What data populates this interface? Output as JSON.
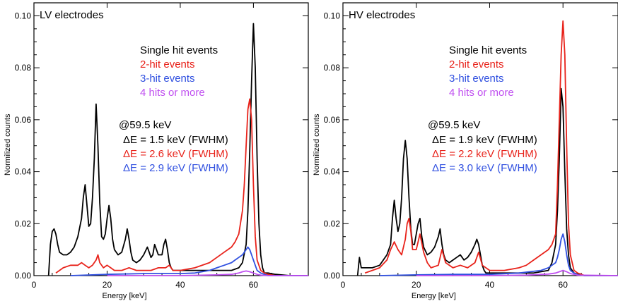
{
  "chart_data": [
    {
      "type": "line",
      "title": "LV electrodes",
      "xlabel": "Energy [keV]",
      "ylabel": "Normilized counts",
      "xlim": [
        0,
        75
      ],
      "ylim": [
        0,
        0.105
      ],
      "xticks": [
        "0",
        "20",
        "40",
        "60"
      ],
      "xtick_values": [
        0,
        20,
        40,
        60
      ],
      "yticks": [
        "0.00",
        "0.02",
        "0.04",
        "0.06",
        "0.08",
        "0.10"
      ],
      "ytick_values": [
        0,
        0.02,
        0.04,
        0.06,
        0.08,
        0.1
      ],
      "legend": [
        "Single hit events",
        "2-hit events",
        "3-hit events",
        "4 hits or more"
      ],
      "annotation": {
        "header": "@59.5 keV",
        "lines": [
          "ΔE = 1.5 keV (FWHM)",
          "ΔE = 2.6 keV (FWHM)",
          "ΔE = 2.9 keV (FWHM)"
        ]
      },
      "series": [
        {
          "name": "Single hit events",
          "color": "#000000",
          "x": [
            4,
            4.5,
            5,
            5.5,
            6,
            6.5,
            7,
            8,
            9,
            10,
            11,
            12,
            13,
            13.5,
            14,
            14.5,
            15,
            15.5,
            16,
            16.5,
            17,
            17.5,
            18,
            18.5,
            19,
            19.5,
            20,
            20.5,
            21,
            21.5,
            22,
            23,
            24,
            25,
            25.5,
            26,
            26.5,
            27,
            28,
            29,
            30,
            31,
            31.5,
            32,
            32.5,
            33,
            34,
            35,
            35.5,
            36,
            36.5,
            37,
            37.5,
            38,
            39,
            40,
            42,
            44,
            46,
            48,
            50,
            52,
            54,
            56,
            57,
            58,
            58.5,
            59,
            59.5,
            60,
            60.5,
            61,
            61.5,
            62,
            62.5,
            63,
            64,
            66,
            70,
            75
          ],
          "y": [
            0,
            0.012,
            0.017,
            0.018,
            0.016,
            0.012,
            0.009,
            0.008,
            0.008,
            0.009,
            0.011,
            0.015,
            0.022,
            0.03,
            0.035,
            0.027,
            0.019,
            0.02,
            0.03,
            0.045,
            0.066,
            0.05,
            0.028,
            0.015,
            0.014,
            0.016,
            0.022,
            0.027,
            0.022,
            0.014,
            0.01,
            0.008,
            0.009,
            0.014,
            0.018,
            0.014,
            0.009,
            0.006,
            0.005,
            0.006,
            0.008,
            0.011,
            0.009,
            0.007,
            0.008,
            0.012,
            0.008,
            0.008,
            0.012,
            0.014,
            0.01,
            0.005,
            0.003,
            0.002,
            0.002,
            0.002,
            0.002,
            0.002,
            0.002,
            0.002,
            0.002,
            0.002,
            0.002,
            0.003,
            0.005,
            0.012,
            0.025,
            0.048,
            0.075,
            0.097,
            0.08,
            0.045,
            0.02,
            0.008,
            0.003,
            0.001,
            0.001,
            0.0005,
            0,
            0
          ]
        },
        {
          "name": "2-hit events",
          "color": "#e8231b",
          "x": [
            6,
            8,
            10,
            12,
            13,
            14,
            15,
            16,
            17,
            17.5,
            18,
            19,
            20,
            21,
            22,
            24,
            26,
            28,
            30,
            32,
            34,
            36,
            37,
            38,
            40,
            44,
            48,
            50,
            52,
            54,
            55,
            56,
            57,
            57.5,
            58,
            58.5,
            59,
            59.5,
            60,
            60.5,
            61,
            62,
            63,
            64,
            66,
            70,
            75
          ],
          "y": [
            0.001,
            0.003,
            0.004,
            0.004,
            0.005,
            0.004,
            0.003,
            0.004,
            0.006,
            0.008,
            0.005,
            0.003,
            0.004,
            0.003,
            0.002,
            0.002,
            0.003,
            0.002,
            0.002,
            0.002,
            0.003,
            0.003,
            0.004,
            0.002,
            0.002,
            0.003,
            0.005,
            0.007,
            0.009,
            0.011,
            0.013,
            0.016,
            0.025,
            0.035,
            0.05,
            0.064,
            0.068,
            0.06,
            0.035,
            0.015,
            0.006,
            0.002,
            0.001,
            0.0005,
            0,
            0,
            0
          ]
        },
        {
          "name": "3-hit events",
          "color": "#3050e0",
          "x": [
            10,
            20,
            30,
            40,
            44,
            48,
            50,
            52,
            54,
            55,
            56,
            57,
            57.5,
            58,
            58.5,
            59,
            59.5,
            60,
            60.5,
            61,
            62,
            63,
            64,
            66,
            75
          ],
          "y": [
            0,
            0.0005,
            0.0008,
            0.0008,
            0.001,
            0.002,
            0.003,
            0.004,
            0.005,
            0.006,
            0.007,
            0.008,
            0.009,
            0.01,
            0.011,
            0.01,
            0.008,
            0.006,
            0.004,
            0.002,
            0.001,
            0.0005,
            0,
            0,
            0
          ]
        },
        {
          "name": "4 hits or more",
          "color": "#c050f0",
          "x": [
            20,
            40,
            50,
            54,
            56,
            57,
            58,
            59,
            60,
            61,
            62,
            64,
            75
          ],
          "y": [
            0,
            0,
            0.0003,
            0.0005,
            0.001,
            0.0015,
            0.0018,
            0.0015,
            0.001,
            0.0005,
            0.0002,
            0,
            0
          ]
        }
      ]
    },
    {
      "type": "line",
      "title": "HV electrodes",
      "xlabel": "Energy [keV]",
      "ylabel": "Normilized counts",
      "xlim": [
        0,
        75
      ],
      "ylim": [
        0,
        0.105
      ],
      "xticks": [
        "0",
        "20",
        "40",
        "60"
      ],
      "xtick_values": [
        0,
        20,
        40,
        60
      ],
      "yticks": [
        "0.00",
        "0.02",
        "0.04",
        "0.06",
        "0.08",
        "0.10"
      ],
      "ytick_values": [
        0,
        0.02,
        0.04,
        0.06,
        0.08,
        0.1
      ],
      "legend": [
        "Single hit events",
        "2-hit events",
        "3-hit events",
        "4 hits or more"
      ],
      "annotation": {
        "header": "@59.5 keV",
        "lines": [
          "ΔE = 1.9 keV (FWHM)",
          "ΔE = 2.2 keV (FWHM)",
          "ΔE = 3.0 keV (FWHM)"
        ]
      },
      "series": [
        {
          "name": "Single hit events",
          "color": "#000000",
          "x": [
            4,
            4.5,
            5,
            6,
            8,
            10,
            12,
            13,
            13.5,
            14,
            14.5,
            15,
            15.5,
            16,
            16.5,
            17,
            17.5,
            18,
            18.5,
            19,
            19.5,
            20,
            20.5,
            21,
            21.5,
            22,
            23,
            24,
            25,
            26,
            26.5,
            27,
            27.5,
            28,
            29,
            30,
            31,
            32,
            32.5,
            33,
            34,
            35,
            36,
            36.5,
            37,
            37.5,
            38,
            38.5,
            39,
            40,
            44,
            48,
            52,
            56,
            57,
            58,
            58.5,
            59,
            59.5,
            60,
            60.5,
            61,
            61.5,
            62,
            63,
            64,
            66,
            70,
            75
          ],
          "y": [
            0,
            0.007,
            0.003,
            0.003,
            0.003,
            0.004,
            0.008,
            0.012,
            0.022,
            0.029,
            0.022,
            0.017,
            0.02,
            0.03,
            0.045,
            0.052,
            0.045,
            0.03,
            0.018,
            0.012,
            0.012,
            0.016,
            0.02,
            0.022,
            0.015,
            0.011,
            0.008,
            0.009,
            0.011,
            0.015,
            0.018,
            0.012,
            0.008,
            0.006,
            0.005,
            0.006,
            0.007,
            0.008,
            0.007,
            0.006,
            0.007,
            0.009,
            0.012,
            0.014,
            0.012,
            0.008,
            0.004,
            0.002,
            0.001,
            0.001,
            0.001,
            0.001,
            0.001,
            0.002,
            0.005,
            0.012,
            0.025,
            0.045,
            0.072,
            0.065,
            0.04,
            0.018,
            0.008,
            0.003,
            0.001,
            0.0005,
            0,
            0,
            0
          ]
        },
        {
          "name": "2-hit events",
          "color": "#e8231b",
          "x": [
            6,
            8,
            10,
            12,
            13,
            14,
            15,
            16,
            17,
            17.5,
            18,
            18.5,
            19,
            20,
            21,
            22,
            23,
            24,
            26,
            27,
            28,
            30,
            32,
            34,
            36,
            37,
            38,
            40,
            44,
            48,
            50,
            52,
            54,
            56,
            57,
            58,
            58.5,
            59,
            59.5,
            60,
            60.5,
            61,
            61.5,
            62,
            63,
            64,
            66,
            70,
            75
          ],
          "y": [
            0.001,
            0.002,
            0.003,
            0.006,
            0.01,
            0.013,
            0.01,
            0.008,
            0.014,
            0.02,
            0.022,
            0.017,
            0.01,
            0.01,
            0.016,
            0.009,
            0.005,
            0.003,
            0.004,
            0.01,
            0.005,
            0.003,
            0.004,
            0.003,
            0.005,
            0.009,
            0.004,
            0.002,
            0.002,
            0.003,
            0.004,
            0.006,
            0.008,
            0.01,
            0.012,
            0.016,
            0.035,
            0.06,
            0.085,
            0.098,
            0.085,
            0.05,
            0.02,
            0.008,
            0.002,
            0.001,
            0,
            0,
            0
          ]
        },
        {
          "name": "3-hit events",
          "color": "#3050e0",
          "x": [
            10,
            20,
            30,
            40,
            48,
            54,
            56,
            57,
            58,
            58.5,
            59,
            59.5,
            60,
            60.5,
            61,
            61.5,
            62,
            63,
            64,
            66,
            75
          ],
          "y": [
            0,
            0.0003,
            0.0005,
            0.0005,
            0.001,
            0.002,
            0.003,
            0.004,
            0.005,
            0.007,
            0.01,
            0.014,
            0.016,
            0.013,
            0.008,
            0.004,
            0.002,
            0.001,
            0.0003,
            0,
            0
          ]
        },
        {
          "name": "4 hits or more",
          "color": "#c050f0",
          "x": [
            20,
            40,
            50,
            56,
            58,
            59,
            60,
            61,
            62,
            64,
            75
          ],
          "y": [
            0,
            0,
            0.0002,
            0.0006,
            0.001,
            0.0015,
            0.002,
            0.0015,
            0.0008,
            0.0002,
            0
          ]
        }
      ]
    }
  ]
}
